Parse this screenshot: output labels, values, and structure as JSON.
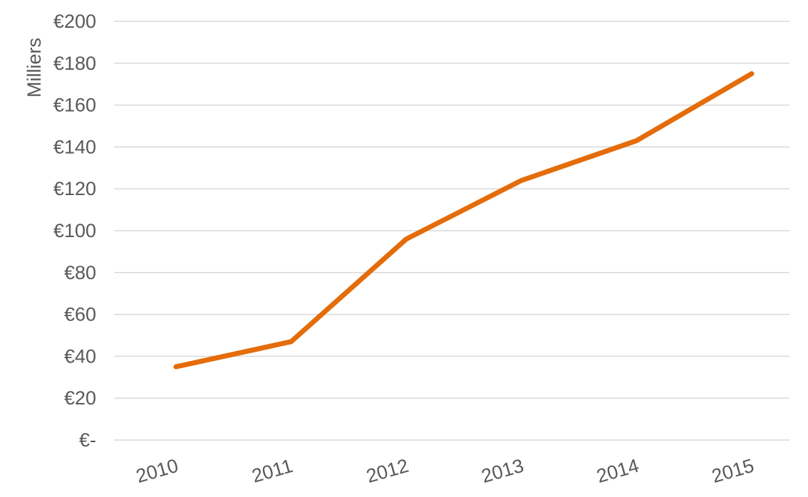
{
  "chart_data": {
    "type": "line",
    "title": "",
    "xlabel": "",
    "ylabel": "Milliers",
    "categories": [
      "2010",
      "2011",
      "2012",
      "2013",
      "2014",
      "2015"
    ],
    "series": [
      {
        "values": [
          35,
          47,
          96,
          124,
          143,
          175
        ]
      }
    ],
    "ylim": [
      0,
      200
    ],
    "ytick_values": [
      0,
      20,
      40,
      60,
      80,
      100,
      120,
      140,
      160,
      180,
      200
    ],
    "ytick_labels": [
      "€-",
      "€20",
      "€40",
      "€60",
      "€80",
      "€100",
      "€120",
      "€140",
      "€160",
      "€180",
      "€200"
    ],
    "grid": true,
    "legend": "none",
    "colors": {
      "line": "#E46C0A",
      "grid": "#D9D9D9",
      "text": "#595959"
    }
  }
}
